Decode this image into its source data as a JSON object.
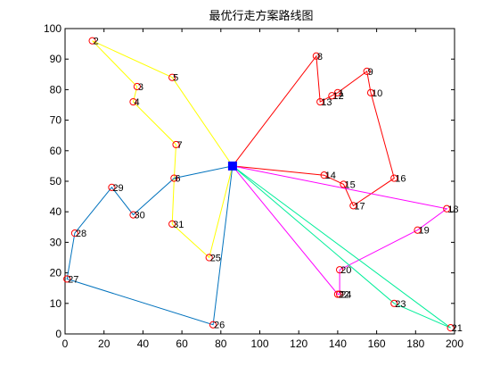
{
  "chart_data": {
    "type": "line",
    "title": "最优行走方案路线图",
    "xlabel": "",
    "ylabel": "",
    "xlim": [
      0,
      200
    ],
    "ylim": [
      0,
      100
    ],
    "xticks": [
      0,
      20,
      40,
      60,
      80,
      100,
      120,
      140,
      160,
      180,
      200
    ],
    "yticks": [
      0,
      10,
      20,
      30,
      40,
      50,
      60,
      70,
      80,
      90,
      100
    ],
    "grid": false,
    "depot": {
      "x": 86,
      "y": 55,
      "color": "#0000ff"
    },
    "points": [
      {
        "id": "1",
        "x": 140,
        "y": 79
      },
      {
        "id": "2",
        "x": 14,
        "y": 96
      },
      {
        "id": "3",
        "x": 37,
        "y": 81
      },
      {
        "id": "4",
        "x": 35,
        "y": 76
      },
      {
        "id": "5",
        "x": 55,
        "y": 84
      },
      {
        "id": "6",
        "x": 56,
        "y": 51
      },
      {
        "id": "7",
        "x": 57,
        "y": 62
      },
      {
        "id": "8",
        "x": 129,
        "y": 91
      },
      {
        "id": "9",
        "x": 155,
        "y": 86
      },
      {
        "id": "10",
        "x": 157,
        "y": 79
      },
      {
        "id": "12",
        "x": 137,
        "y": 78
      },
      {
        "id": "13",
        "x": 131,
        "y": 76
      },
      {
        "id": "14",
        "x": 133,
        "y": 52
      },
      {
        "id": "15",
        "x": 143,
        "y": 49
      },
      {
        "id": "16",
        "x": 169,
        "y": 51
      },
      {
        "id": "17",
        "x": 148,
        "y": 42
      },
      {
        "id": "18",
        "x": 196,
        "y": 41
      },
      {
        "id": "19",
        "x": 181,
        "y": 34
      },
      {
        "id": "20",
        "x": 141,
        "y": 21
      },
      {
        "id": "21",
        "x": 198,
        "y": 2
      },
      {
        "id": "22",
        "x": 140,
        "y": 13
      },
      {
        "id": "23",
        "x": 169,
        "y": 10
      },
      {
        "id": "24",
        "x": 141,
        "y": 13
      },
      {
        "id": "25",
        "x": 74,
        "y": 25
      },
      {
        "id": "26",
        "x": 76,
        "y": 3
      },
      {
        "id": "27",
        "x": 1,
        "y": 18
      },
      {
        "id": "28",
        "x": 5,
        "y": 33
      },
      {
        "id": "29",
        "x": 24,
        "y": 48
      },
      {
        "id": "30",
        "x": 35,
        "y": 39
      },
      {
        "id": "31",
        "x": 55,
        "y": 36
      }
    ],
    "series": [
      {
        "color": "#ffff00",
        "route": [
          "depot",
          "5",
          "2",
          "3",
          "4",
          "7",
          "6",
          "31",
          "25",
          "depot"
        ]
      },
      {
        "color": "#ff0000",
        "route": [
          "depot",
          "8",
          "13",
          "12",
          "1",
          "9",
          "10",
          "16",
          "17",
          "15",
          "14",
          "depot"
        ]
      },
      {
        "color": "#ff00ff",
        "route": [
          "depot",
          "18",
          "19",
          "20",
          "24",
          "22",
          "depot"
        ]
      },
      {
        "color": "#00ee99",
        "route": [
          "depot",
          "23",
          "21",
          "depot"
        ]
      },
      {
        "color": "#0072bd",
        "route": [
          "depot",
          "26",
          "27",
          "28",
          "29",
          "30",
          "6",
          "depot"
        ]
      }
    ],
    "marker_color": "#ff0000"
  }
}
